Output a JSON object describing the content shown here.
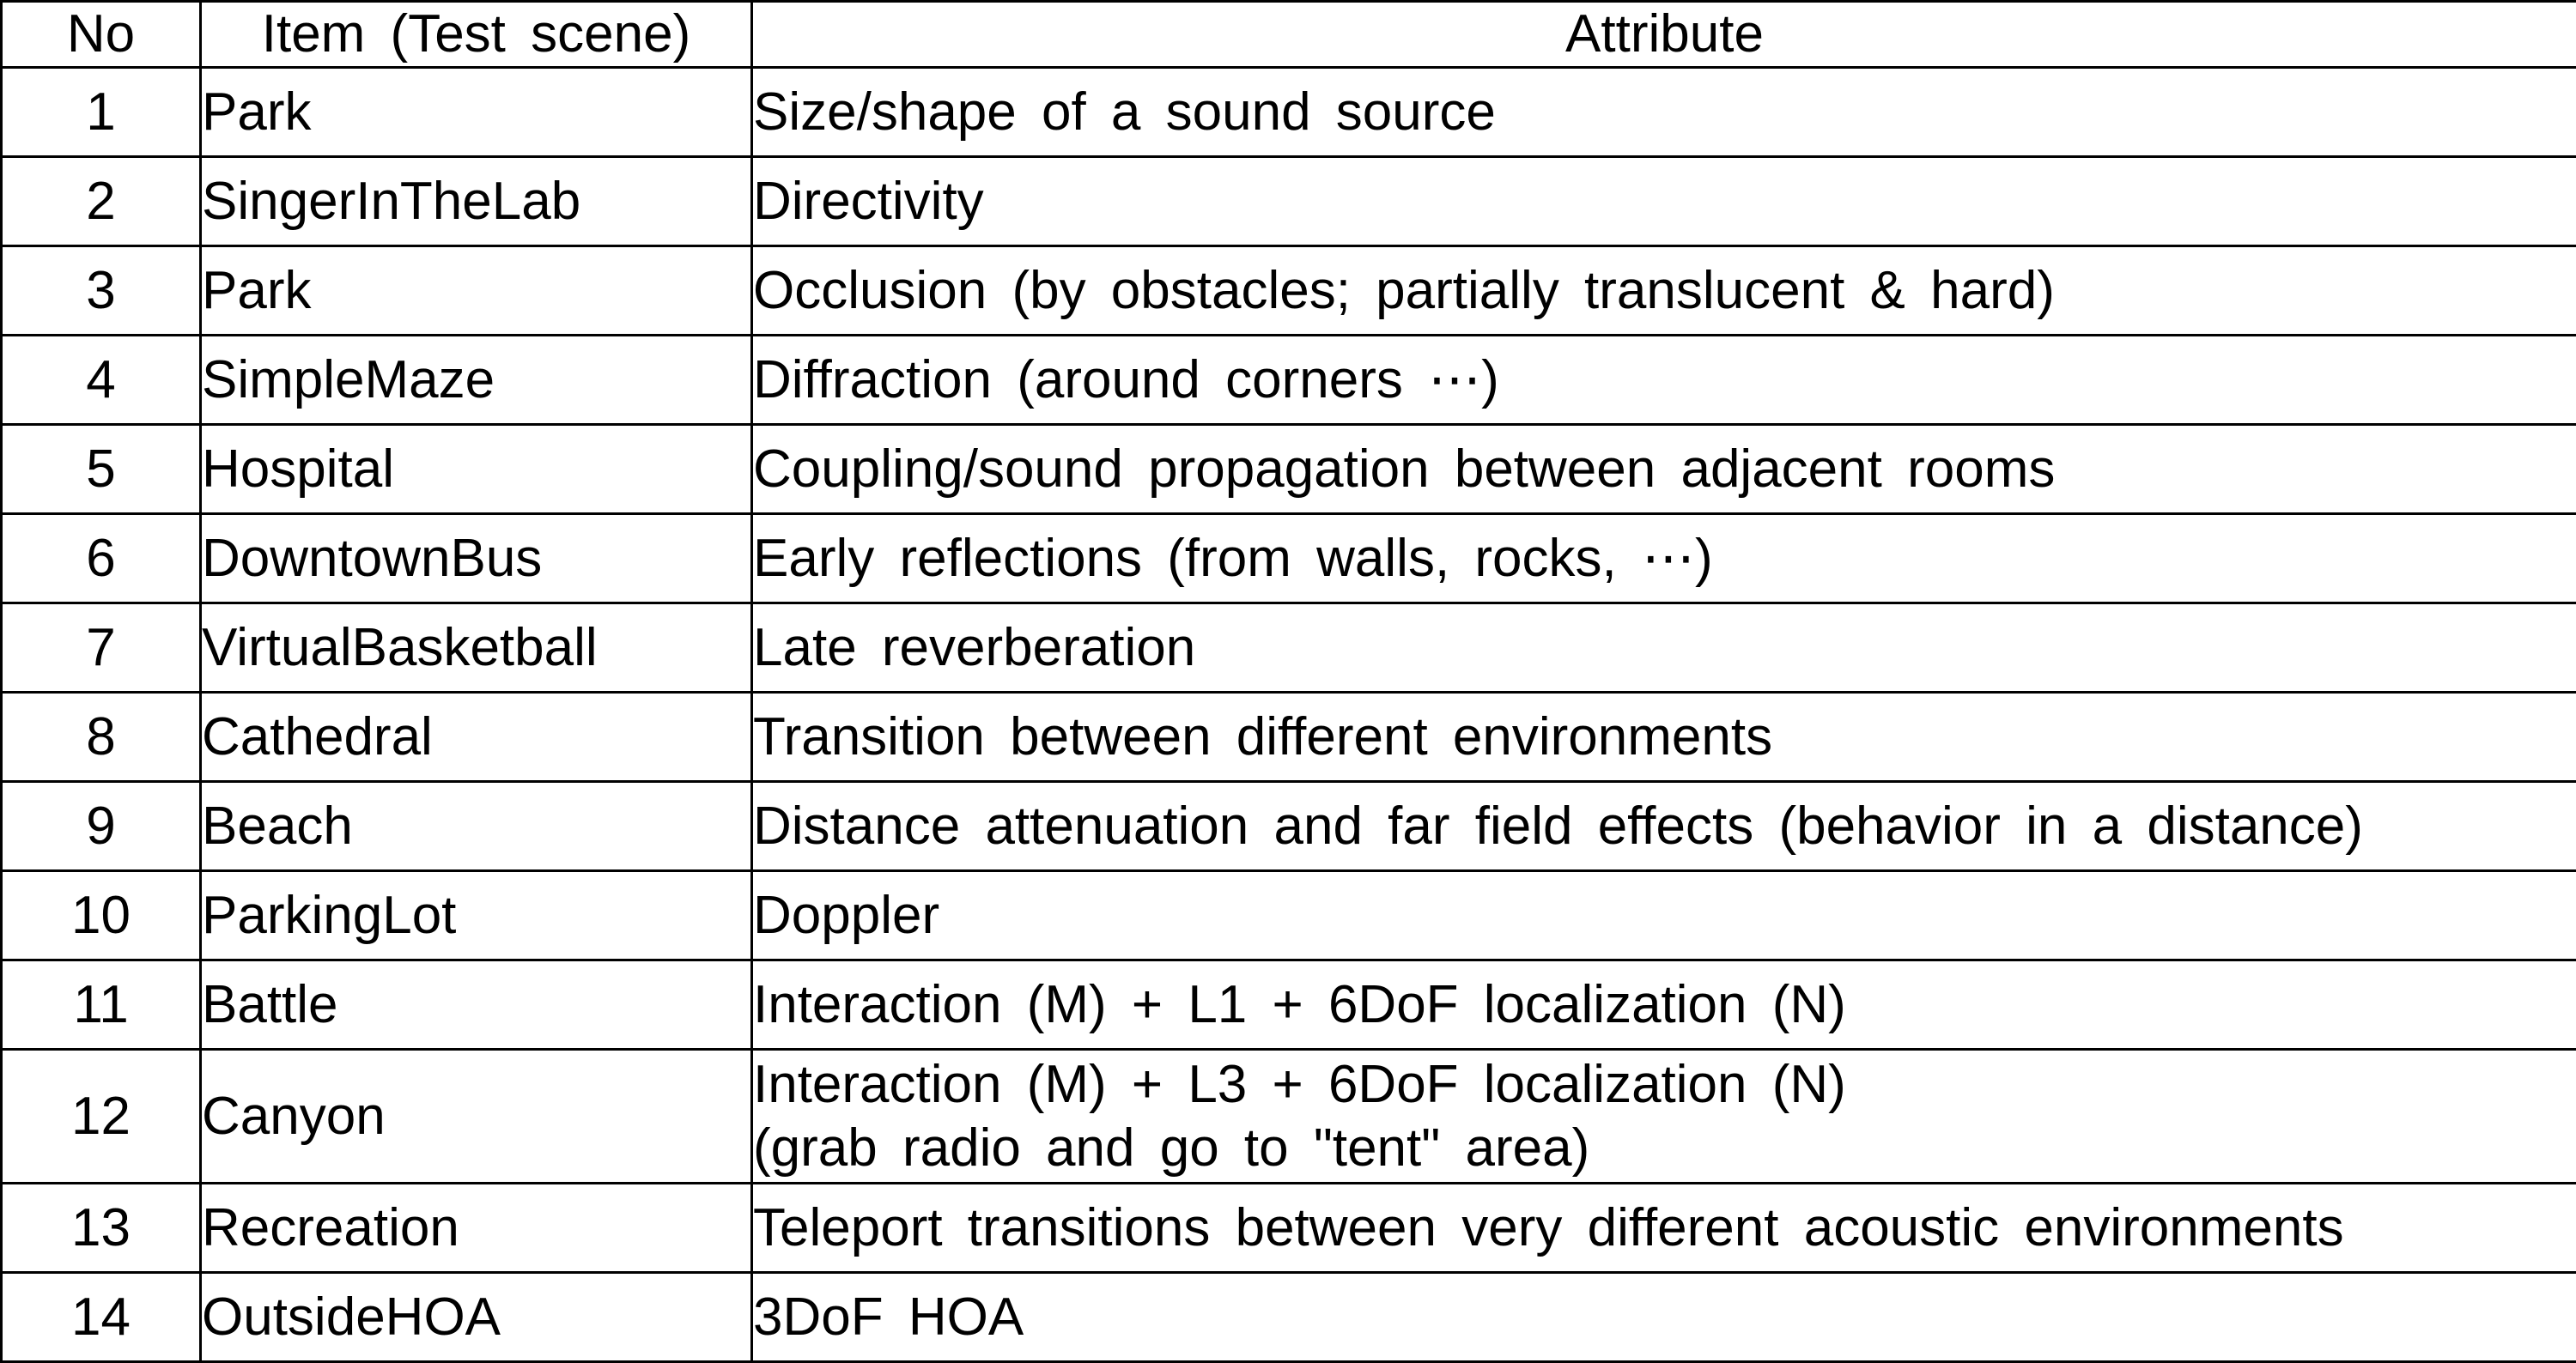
{
  "table": {
    "headers": {
      "no": "No",
      "item": "Item (Test scene)",
      "attribute": "Attribute"
    },
    "rows": [
      {
        "no": "1",
        "item": "Park",
        "attribute": "Size/shape of a sound source",
        "attribute2": ""
      },
      {
        "no": "2",
        "item": "SingerInTheLab",
        "attribute": "Directivity",
        "attribute2": ""
      },
      {
        "no": "3",
        "item": "Park",
        "attribute": "Occlusion (by obstacles; partially translucent & hard)",
        "attribute2": ""
      },
      {
        "no": "4",
        "item": "SimpleMaze",
        "attribute": "Diffraction (around corners ⋯)",
        "attribute2": ""
      },
      {
        "no": "5",
        "item": "Hospital",
        "attribute": "Coupling/sound propagation between adjacent rooms",
        "attribute2": ""
      },
      {
        "no": "6",
        "item": "DowntownBus",
        "attribute": "Early reflections (from walls, rocks, ⋯)",
        "attribute2": ""
      },
      {
        "no": "7",
        "item": "VirtualBasketball",
        "attribute": "Late reverberation",
        "attribute2": ""
      },
      {
        "no": "8",
        "item": "Cathedral",
        "attribute": "Transition between different environments",
        "attribute2": ""
      },
      {
        "no": "9",
        "item": "Beach",
        "attribute": "Distance attenuation and far field effects (behavior in a distance)",
        "attribute2": ""
      },
      {
        "no": "10",
        "item": "ParkingLot",
        "attribute": "Doppler",
        "attribute2": ""
      },
      {
        "no": "11",
        "item": "Battle",
        "attribute": "Interaction (M) + L1 + 6DoF localization (N)",
        "attribute2": ""
      },
      {
        "no": "12",
        "item": "Canyon",
        "attribute": "Interaction (M) + L3 + 6DoF localization (N)",
        "attribute2": "(grab radio and go to \"tent\" area)"
      },
      {
        "no": "13",
        "item": "Recreation",
        "attribute": "Teleport transitions between very different acoustic environments",
        "attribute2": ""
      },
      {
        "no": "14",
        "item": "OutsideHOA",
        "attribute": "3DoF HOA",
        "attribute2": ""
      }
    ]
  }
}
